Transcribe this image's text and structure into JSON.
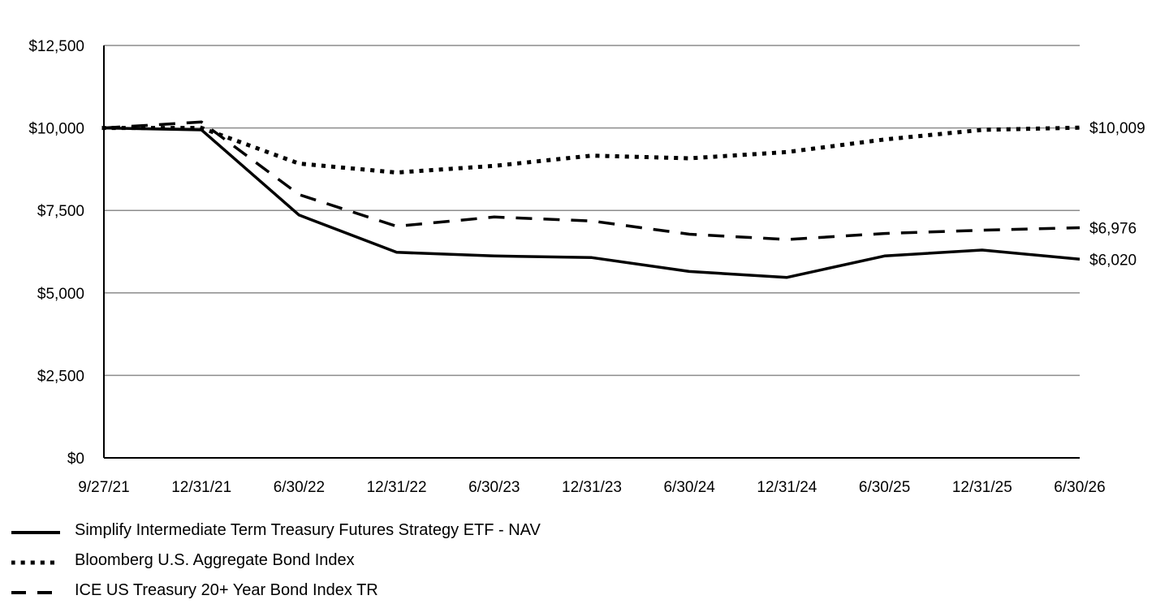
{
  "chart_data": {
    "type": "line",
    "title": "",
    "xlabel": "",
    "ylabel": "",
    "ylim": [
      0,
      12500
    ],
    "y_ticks": [
      0,
      2500,
      5000,
      7500,
      10000,
      12500
    ],
    "y_tick_labels": [
      "$0",
      "$2,500",
      "$5,000",
      "$7,500",
      "$10,000",
      "$12,500"
    ],
    "categories": [
      "9/27/21",
      "12/31/21",
      "6/30/22",
      "12/31/22",
      "6/30/23",
      "12/31/23",
      "6/30/24",
      "12/31/24",
      "6/30/25",
      "12/31/25",
      "6/30/26"
    ],
    "grid": true,
    "legend_position": "bottom-left",
    "series": [
      {
        "name": "Simplify Intermediate Term Treasury Futures Strategy ETF - NAV",
        "style": "solid",
        "color": "#000000",
        "values": [
          10000,
          9940,
          7360,
          6230,
          6120,
          6070,
          5650,
          5470,
          6120,
          6300,
          6020
        ],
        "end_label": "$6,020"
      },
      {
        "name": "Bloomberg U.S. Aggregate Bond Index",
        "style": "dotted",
        "color": "#000000",
        "values": [
          10000,
          10000,
          8920,
          8650,
          8850,
          9160,
          9080,
          9270,
          9650,
          9940,
          10009
        ],
        "end_label": "$10,009"
      },
      {
        "name": "ICE US Treasury 20+ Year Bond Index TR",
        "style": "dashed",
        "color": "#000000",
        "values": [
          10000,
          10180,
          7980,
          7020,
          7300,
          7180,
          6780,
          6620,
          6800,
          6900,
          6976
        ],
        "end_label": "$6,976"
      }
    ]
  }
}
